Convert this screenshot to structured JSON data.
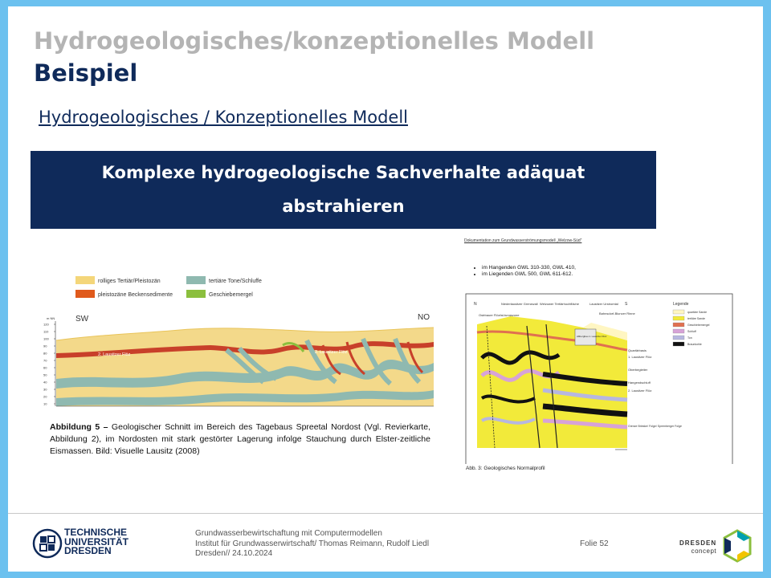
{
  "title": {
    "line1": "Hydrogeologisches/konzeptionelles Modell",
    "line2": "Beispiel"
  },
  "subtitle_link": "Hydrogeologisches / Konzeptionelles Modell",
  "banner": {
    "line1": "Komplexe hydrogeologische Sachverhalte adäquat",
    "line2": "abstrahieren"
  },
  "figure1": {
    "legend": [
      {
        "label": "rolliges Tertiär/Pleistozän",
        "color": "#f4d67a"
      },
      {
        "label": "pleistozäne Beckensedimente",
        "color": "#e05a1c"
      },
      {
        "label": "tertiäre Tone/Schluffe",
        "color": "#8fb9b0"
      },
      {
        "label": "Geschiebemergel",
        "color": "#8bbf3e"
      }
    ],
    "dir_left": "SW",
    "dir_right": "NO",
    "unit_label": "m NN",
    "y_ticks": [
      "120",
      "110",
      "100",
      "90",
      "80",
      "70",
      "60",
      "50",
      "40",
      "30",
      "20",
      "10"
    ],
    "seam_labels": [
      "2. Lausitzer Flöz",
      "2. Lausitzer Flöz"
    ],
    "caption_bold": "Abbildung 5 –",
    "caption_text": " Geologischer Schnitt im Bereich des Tagebaus Spreetal Nordost (Vgl. Revierkarte, Abbildung 2), im Nordosten mit stark gestörter Lagerung  infolge Stauchung durch Elster-zeitliche Eismassen. Bild: Visuelle Lausitz (2008)"
  },
  "figure2": {
    "doc_header": "Dokumentation zum Grundwasserströmungsmodell „Welzow-Süd“",
    "bullets": [
      "im Hangenden GWL 310-330, GWL 410,",
      "im Liegenden GWL 500, GWL 611-612."
    ],
    "compass": {
      "n": "N",
      "s": "S"
    },
    "top_labels": [
      "Niederlausitzer Grenzwall",
      "Welzower Tertiärhochfläche",
      "Lausitzer Urstromtal"
    ],
    "left_labels": [
      "Ostrbauer Flözfal-tungszone",
      "Kauscher Graben"
    ],
    "right_labels": [
      "Bahnsdorf-Bluncer Rinne",
      "Quartärbasis",
      "1. Lausitzer Flöz",
      "Oberbegleiter",
      "Hangendschluff",
      "2. Lausitzer Flöz",
      "Grenze Brieske/ Folge/ Spremberger Folge"
    ],
    "box_label": "Altbergbau 1. Lausitzer Flöz",
    "legend_title": "Legende",
    "legend": [
      {
        "label": "quartäre Sande",
        "color": "#fff6c2"
      },
      {
        "label": "tertiäre Sande",
        "color": "#f2ea3a"
      },
      {
        "label": "Geschiebemergel",
        "color": "#e07050"
      },
      {
        "label": "Schluff",
        "color": "#d7a3d7"
      },
      {
        "label": "Ton",
        "color": "#b7b7e0"
      },
      {
        "label": "Braunkohle",
        "color": "#111111"
      }
    ],
    "caption": "Abb. 3: Geologisches Normalprofil"
  },
  "footer": {
    "org_lines": [
      "TECHNISCHE",
      "UNIVERSITÄT",
      "DRESDEN"
    ],
    "info_lines": [
      "Grundwasserbewirtschaftung mit Computermodellen",
      "Institut für Grundwasserwirtschaft/ Thomas Reimann, Rudolf Liedl",
      "Dresden// 24.10.2024"
    ],
    "page": "Folie 52",
    "partner_lines": [
      "DRESDEN",
      "concept"
    ]
  }
}
